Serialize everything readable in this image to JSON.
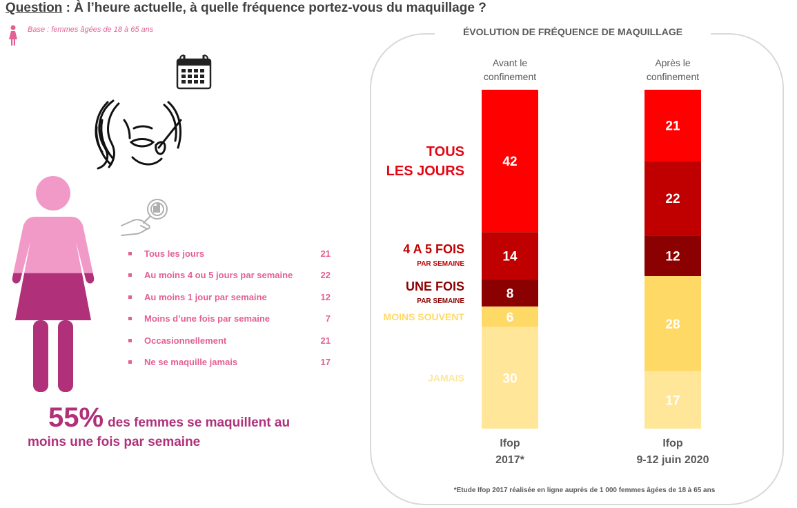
{
  "question": {
    "label": "Question",
    "text": " : À l’heure actuelle, à quelle fréquence portez-vous du maquillage ?"
  },
  "base": "Base : femmes âgées de 18 à 65 ans",
  "stats": [
    {
      "label": "Tous les jours",
      "value": "21"
    },
    {
      "label": "Au moins 4 ou 5 jours par semaine",
      "value": "22"
    },
    {
      "label": "Au moins 1 jour par semaine",
      "value": "12"
    },
    {
      "label": "Moins d’une fois par semaine",
      "value": "7"
    },
    {
      "label": "Occasionnellement",
      "value": "21"
    },
    {
      "label": "Ne se maquille jamais",
      "value": "17"
    }
  ],
  "headline": {
    "percent": "55%",
    "line1": "des femmes se maquillent au",
    "line2": "moins une fois par semaine"
  },
  "woman_fill": {
    "value": 55,
    "unit": "%"
  },
  "panel_title": "ÉVOLUTION DE FRÉQUENCE DE MAQUILLAGE",
  "footnote": "*Etude Ifop 2017 réalisée en ligne auprès de 1 000 femmes âgées de 18 à 65 ans",
  "chart_data": {
    "type": "bar",
    "stacked": true,
    "title": "ÉVOLUTION DE FRÉQUENCE DE MAQUILLAGE",
    "categories": [
      "Avant le confinement",
      "Après le confinement"
    ],
    "column_headers": [
      [
        "Avant le",
        "confinement"
      ],
      [
        "Après le",
        "confinement"
      ]
    ],
    "column_footers": [
      [
        "Ifop",
        "2017*"
      ],
      [
        "Ifop",
        "9-12 juin 2020"
      ]
    ],
    "series": [
      {
        "name": "TOUS LES JOURS",
        "label_lines": [
          "TOUS",
          "LES JOURS"
        ],
        "sub": "",
        "color": "#ff0000",
        "label_color": "#e30613",
        "values": [
          42,
          21
        ]
      },
      {
        "name": "4 A 5 FOIS PAR SEMAINE",
        "label_lines": [
          "4 A 5 FOIS"
        ],
        "sub": "PAR SEMAINE",
        "color": "#c00000",
        "label_color": "#c00000",
        "values": [
          14,
          22
        ]
      },
      {
        "name": "UNE FOIS PAR SEMAINE",
        "label_lines": [
          "UNE FOIS"
        ],
        "sub": "PAR SEMAINE",
        "color": "#8b0000",
        "label_color": "#8b0000",
        "values": [
          8,
          12
        ]
      },
      {
        "name": "MOINS SOUVENT",
        "label_lines": [
          "MOINS SOUVENT"
        ],
        "sub": "",
        "color": "#ffd966",
        "label_color": "#ffd966",
        "values": [
          6,
          28
        ]
      },
      {
        "name": "JAMAIS",
        "label_lines": [
          "JAMAIS"
        ],
        "sub": "",
        "color": "#ffe699",
        "label_color": "#ffe699",
        "values": [
          30,
          17
        ]
      }
    ],
    "value_label_colors": [
      "#ffffff",
      "#ffffff",
      "#ffffff",
      "#ffffff",
      "#ffffff"
    ],
    "ylim": [
      0,
      100
    ]
  }
}
